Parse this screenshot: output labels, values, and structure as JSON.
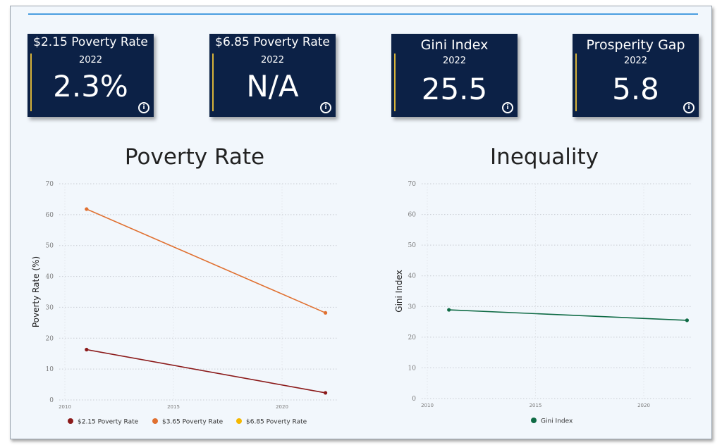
{
  "cards": [
    {
      "title": "$2.15 Poverty Rate",
      "year": "2022",
      "value": "2.3%",
      "icon": "info-icon"
    },
    {
      "title": "$6.85 Poverty Rate",
      "year": "2022",
      "value": "N/A",
      "icon": "info-icon"
    },
    {
      "title": "Gini Index",
      "year": "2022",
      "value": "25.5",
      "icon": "info-icon"
    },
    {
      "title": "Prosperity Gap",
      "year": "2022",
      "value": "5.8",
      "icon": "info-icon"
    }
  ],
  "colors": {
    "card_bg": "#0c2146",
    "card_accent": "#d8b43a",
    "accent_line": "#4a9ee0"
  },
  "chart_data": [
    {
      "type": "line",
      "title": "Poverty Rate",
      "xlabel": "",
      "ylabel": "Poverty Rate (%)",
      "xlim": [
        2010,
        2022
      ],
      "ylim": [
        0,
        70
      ],
      "xticks": [
        2010,
        2015,
        2020
      ],
      "yticks": [
        0,
        10,
        20,
        30,
        40,
        50,
        60,
        70
      ],
      "grid": true,
      "legend": "bottom",
      "series": [
        {
          "name": "$2.15 Poverty Rate",
          "color": "#8b1a1a",
          "x": [
            2011,
            2022
          ],
          "y": [
            16.3,
            2.3
          ]
        },
        {
          "name": "$3.65 Poverty Rate",
          "color": "#e07030",
          "x": [
            2011,
            2022
          ],
          "y": [
            61.8,
            28.2
          ]
        },
        {
          "name": "$6.85 Poverty Rate",
          "color": "#f5b800",
          "x": [],
          "y": []
        }
      ]
    },
    {
      "type": "line",
      "title": "Inequality",
      "xlabel": "",
      "ylabel": "Gini Index",
      "xlim": [
        2010,
        2022
      ],
      "ylim": [
        0,
        70
      ],
      "xticks": [
        2010,
        2015,
        2020
      ],
      "yticks": [
        0,
        10,
        20,
        30,
        40,
        50,
        60,
        70
      ],
      "grid": true,
      "legend": "bottom",
      "series": [
        {
          "name": "Gini Index",
          "color": "#0f6b45",
          "x": [
            2011,
            2022
          ],
          "y": [
            28.9,
            25.5
          ]
        }
      ]
    }
  ]
}
